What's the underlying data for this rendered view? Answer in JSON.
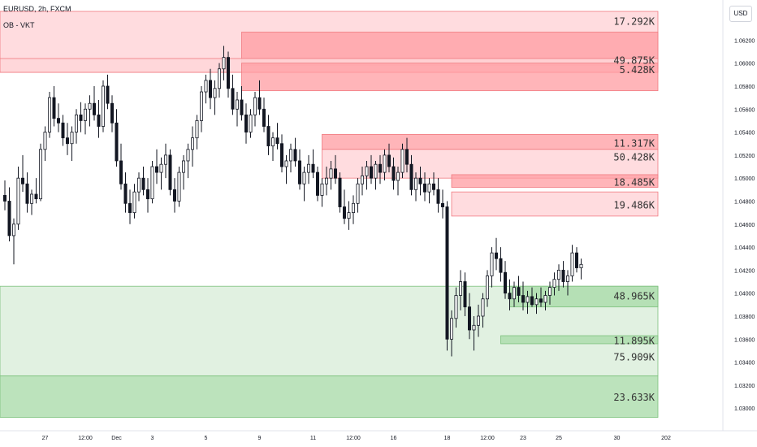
{
  "header": {
    "symbol_line": "EURUSD, 2h, FXCM",
    "indicator": "OB - VKT",
    "currency_button": "USD"
  },
  "colors": {
    "bear_light": "#ffd6d9",
    "bear_dark": "#ff9ca1",
    "bear_border": "#f07a80",
    "bull_light": "#dcefdc",
    "bull_dark": "#a5d9a5",
    "bull_border": "#7cc07c",
    "candle": "#131722"
  },
  "chart_data": {
    "type": "candlestick",
    "y_axis": {
      "min": 1.0286,
      "max": 1.0645,
      "ticks": [
        "1.06200",
        "1.06000",
        "1.05800",
        "1.05600",
        "1.05400",
        "1.05200",
        "1.05000",
        "1.04800",
        "1.04600",
        "1.04400",
        "1.04200",
        "1.04000",
        "1.03800",
        "1.03600",
        "1.03400",
        "1.03200",
        "1.03000"
      ]
    },
    "x_axis": {
      "ticks": [
        {
          "label": "27",
          "i": 9
        },
        {
          "label": "12:00",
          "i": 18
        },
        {
          "label": "Dec",
          "i": 25
        },
        {
          "label": "3",
          "i": 33
        },
        {
          "label": "5",
          "i": 45
        },
        {
          "label": "9",
          "i": 57
        },
        {
          "label": "11",
          "i": 69
        },
        {
          "label": "12:00",
          "i": 78
        },
        {
          "label": "16",
          "i": 87
        },
        {
          "label": "18",
          "i": 99
        },
        {
          "label": "12:00",
          "i": 108
        },
        {
          "label": "23",
          "i": 116
        },
        {
          "label": "25",
          "i": 124
        },
        {
          "label": "30",
          "i": 137
        },
        {
          "label": "202",
          "i": 148
        }
      ]
    },
    "candles_ohlc": [
      [
        1.0485,
        1.0498,
        1.0472,
        1.048
      ],
      [
        1.048,
        1.0492,
        1.0445,
        1.045
      ],
      [
        1.045,
        1.0465,
        1.0425,
        1.046
      ],
      [
        1.046,
        1.051,
        1.0455,
        1.05
      ],
      [
        1.05,
        1.052,
        1.0488,
        1.0495
      ],
      [
        1.0495,
        1.0505,
        1.047,
        1.0478
      ],
      [
        1.0478,
        1.049,
        1.0468,
        1.0486
      ],
      [
        1.0486,
        1.05,
        1.0478,
        1.0482
      ],
      [
        1.0482,
        1.053,
        1.048,
        1.0525
      ],
      [
        1.0525,
        1.0545,
        1.0515,
        1.054
      ],
      [
        1.054,
        1.0575,
        1.0535,
        1.057
      ],
      [
        1.057,
        1.058,
        1.0545,
        1.0552
      ],
      [
        1.0552,
        1.0565,
        1.054,
        1.0548
      ],
      [
        1.0548,
        1.0555,
        1.0528,
        1.0535
      ],
      [
        1.0535,
        1.0548,
        1.052,
        1.053
      ],
      [
        1.053,
        1.0545,
        1.0515,
        1.054
      ],
      [
        1.054,
        1.056,
        1.053,
        1.0555
      ],
      [
        1.0555,
        1.0566,
        1.054,
        1.055
      ],
      [
        1.055,
        1.0565,
        1.0538,
        1.056
      ],
      [
        1.056,
        1.0572,
        1.0545,
        1.0565
      ],
      [
        1.0565,
        1.058,
        1.055,
        1.0555
      ],
      [
        1.0555,
        1.0568,
        1.0535,
        1.0545
      ],
      [
        1.0545,
        1.0585,
        1.054,
        1.058
      ],
      [
        1.058,
        1.059,
        1.056,
        1.0565
      ],
      [
        1.0565,
        1.0572,
        1.054,
        1.0548
      ],
      [
        1.0548,
        1.056,
        1.051,
        1.0515
      ],
      [
        1.0515,
        1.053,
        1.049,
        1.0495
      ],
      [
        1.0495,
        1.0505,
        1.047,
        1.0478
      ],
      [
        1.0478,
        1.049,
        1.046,
        1.047
      ],
      [
        1.047,
        1.0495,
        1.0465,
        1.0488
      ],
      [
        1.0488,
        1.0505,
        1.048,
        1.05
      ],
      [
        1.05,
        1.051,
        1.0485,
        1.049
      ],
      [
        1.049,
        1.05,
        1.047,
        1.0482
      ],
      [
        1.0482,
        1.0515,
        1.0478,
        1.051
      ],
      [
        1.051,
        1.0525,
        1.0495,
        1.0505
      ],
      [
        1.0505,
        1.0518,
        1.049,
        1.0512
      ],
      [
        1.0512,
        1.053,
        1.05,
        1.052
      ],
      [
        1.052,
        1.0525,
        1.0485,
        1.049
      ],
      [
        1.049,
        1.05,
        1.047,
        1.048
      ],
      [
        1.048,
        1.051,
        1.0475,
        1.0505
      ],
      [
        1.0505,
        1.052,
        1.049,
        1.0515
      ],
      [
        1.0515,
        1.053,
        1.05,
        1.0525
      ],
      [
        1.0525,
        1.0545,
        1.051,
        1.0535
      ],
      [
        1.0535,
        1.0555,
        1.0525,
        1.055
      ],
      [
        1.055,
        1.058,
        1.054,
        1.0575
      ],
      [
        1.0575,
        1.059,
        1.0565,
        1.0585
      ],
      [
        1.0585,
        1.0595,
        1.056,
        1.057
      ],
      [
        1.057,
        1.0585,
        1.0555,
        1.0578
      ],
      [
        1.0578,
        1.06,
        1.057,
        1.0595
      ],
      [
        1.0595,
        1.0615,
        1.0585,
        1.0605
      ],
      [
        1.0605,
        1.061,
        1.057,
        1.0578
      ],
      [
        1.0578,
        1.059,
        1.0555,
        1.056
      ],
      [
        1.056,
        1.0575,
        1.0545,
        1.0568
      ],
      [
        1.0568,
        1.058,
        1.055,
        1.0555
      ],
      [
        1.0555,
        1.0565,
        1.053,
        1.054
      ],
      [
        1.054,
        1.056,
        1.0535,
        1.0555
      ],
      [
        1.0555,
        1.0575,
        1.0545,
        1.057
      ],
      [
        1.057,
        1.0585,
        1.0555,
        1.056
      ],
      [
        1.056,
        1.057,
        1.054,
        1.0545
      ],
      [
        1.0545,
        1.0555,
        1.052,
        1.0528
      ],
      [
        1.0528,
        1.054,
        1.0515,
        1.0535
      ],
      [
        1.0535,
        1.0548,
        1.0525,
        1.053
      ],
      [
        1.053,
        1.0538,
        1.0505,
        1.051
      ],
      [
        1.051,
        1.052,
        1.0495,
        1.0515
      ],
      [
        1.0515,
        1.053,
        1.0505,
        1.0525
      ],
      [
        1.0525,
        1.0535,
        1.051,
        1.0515
      ],
      [
        1.0515,
        1.0525,
        1.049,
        1.0495
      ],
      [
        1.0495,
        1.051,
        1.048,
        1.0505
      ],
      [
        1.0505,
        1.052,
        1.0495,
        1.0512
      ],
      [
        1.0512,
        1.0525,
        1.05,
        1.0505
      ],
      [
        1.0505,
        1.051,
        1.048,
        1.0485
      ],
      [
        1.0485,
        1.05,
        1.0475,
        1.0495
      ],
      [
        1.0495,
        1.051,
        1.0485,
        1.05
      ],
      [
        1.05,
        1.0515,
        1.049,
        1.0508
      ],
      [
        1.0508,
        1.052,
        1.0495,
        1.05
      ],
      [
        1.05,
        1.0505,
        1.047,
        1.0475
      ],
      [
        1.0475,
        1.049,
        1.046,
        1.0465
      ],
      [
        1.0465,
        1.048,
        1.0455,
        1.047
      ],
      [
        1.047,
        1.0485,
        1.046,
        1.0478
      ],
      [
        1.0478,
        1.05,
        1.047,
        1.0495
      ],
      [
        1.0495,
        1.051,
        1.0485,
        1.0502
      ],
      [
        1.0502,
        1.0515,
        1.049,
        1.051
      ],
      [
        1.051,
        1.052,
        1.0495,
        1.05
      ],
      [
        1.05,
        1.0515,
        1.049,
        1.0512
      ],
      [
        1.0512,
        1.052,
        1.0495,
        1.0505
      ],
      [
        1.0505,
        1.0525,
        1.0498,
        1.052
      ],
      [
        1.052,
        1.053,
        1.0505,
        1.051
      ],
      [
        1.051,
        1.0518,
        1.049,
        1.0498
      ],
      [
        1.0498,
        1.051,
        1.0485,
        1.0505
      ],
      [
        1.0505,
        1.053,
        1.05,
        1.0525
      ],
      [
        1.0525,
        1.0535,
        1.0505,
        1.0512
      ],
      [
        1.0512,
        1.052,
        1.0485,
        1.049
      ],
      [
        1.049,
        1.0505,
        1.048,
        1.05
      ],
      [
        1.05,
        1.051,
        1.0485,
        1.0495
      ],
      [
        1.0495,
        1.0505,
        1.048,
        1.0488
      ],
      [
        1.0488,
        1.05,
        1.0478,
        1.0495
      ],
      [
        1.0495,
        1.0505,
        1.0485,
        1.049
      ],
      [
        1.049,
        1.05,
        1.047,
        1.0478
      ],
      [
        1.0478,
        1.049,
        1.0465,
        1.0475
      ],
      [
        1.0475,
        1.048,
        1.035,
        1.036
      ],
      [
        1.036,
        1.0385,
        1.0345,
        1.0378
      ],
      [
        1.0378,
        1.0405,
        1.037,
        1.0398
      ],
      [
        1.0398,
        1.042,
        1.0385,
        1.041
      ],
      [
        1.041,
        1.0418,
        1.038,
        1.0388
      ],
      [
        1.0388,
        1.04,
        1.036,
        1.0368
      ],
      [
        1.0368,
        1.038,
        1.035,
        1.0372
      ],
      [
        1.0372,
        1.039,
        1.0362,
        1.038
      ],
      [
        1.038,
        1.04,
        1.037,
        1.0395
      ],
      [
        1.0395,
        1.042,
        1.0388,
        1.0415
      ],
      [
        1.0415,
        1.044,
        1.0405,
        1.0435
      ],
      [
        1.0435,
        1.0448,
        1.042,
        1.043
      ],
      [
        1.043,
        1.044,
        1.041,
        1.0418
      ],
      [
        1.0418,
        1.0428,
        1.0395,
        1.04
      ],
      [
        1.04,
        1.0412,
        1.0385,
        1.0395
      ],
      [
        1.0395,
        1.041,
        1.0388,
        1.0405
      ],
      [
        1.0405,
        1.0415,
        1.0392,
        1.0398
      ],
      [
        1.0398,
        1.041,
        1.0385,
        1.0392
      ],
      [
        1.0392,
        1.0402,
        1.0382,
        1.0397
      ],
      [
        1.0397,
        1.0405,
        1.0388,
        1.039
      ],
      [
        1.039,
        1.04,
        1.0382,
        1.0395
      ],
      [
        1.0395,
        1.0405,
        1.0388,
        1.0392
      ],
      [
        1.0392,
        1.0402,
        1.0385,
        1.0398
      ],
      [
        1.0398,
        1.041,
        1.039,
        1.0405
      ],
      [
        1.0405,
        1.0418,
        1.0398,
        1.0412
      ],
      [
        1.0412,
        1.0425,
        1.0402,
        1.042
      ],
      [
        1.042,
        1.0428,
        1.0405,
        1.041
      ],
      [
        1.041,
        1.042,
        1.0398,
        1.0415
      ],
      [
        1.0415,
        1.0442,
        1.041,
        1.0435
      ],
      [
        1.0435,
        1.044,
        1.0418,
        1.0422
      ],
      [
        1.0422,
        1.043,
        1.0412,
        1.0425
      ]
    ],
    "order_blocks": [
      {
        "side": "bear",
        "top": 1.0645,
        "bottom": 1.0592,
        "label": "17.292K",
        "shade": "light",
        "x_start": 0
      },
      {
        "side": "bear",
        "top": 1.0627,
        "bottom": 1.0598,
        "label": "17.292K",
        "shade": "dark",
        "x_start": 53
      },
      {
        "side": "bear",
        "top": 1.0604,
        "bottom": 1.0592,
        "label": "49.875K",
        "shade": "light",
        "x_start": 0
      },
      {
        "side": "bear",
        "top": 1.06,
        "bottom": 1.0576,
        "label": "5.428K",
        "shade": "dark",
        "x_start": 53
      },
      {
        "side": "bear",
        "top": 1.0538,
        "bottom": 1.0525,
        "label": "11.317K",
        "shade": "dark",
        "x_start": 71
      },
      {
        "side": "bear",
        "top": 1.0525,
        "bottom": 1.05,
        "label": "50.428K",
        "shade": "light",
        "x_start": 71
      },
      {
        "side": "bear",
        "top": 1.0503,
        "bottom": 1.0492,
        "label": "18.485K",
        "shade": "dark",
        "x_start": 100
      },
      {
        "side": "bear",
        "top": 1.0488,
        "bottom": 1.0467,
        "label": "19.486K",
        "shade": "light",
        "x_start": 100
      },
      {
        "side": "bull",
        "top": 1.0406,
        "bottom": 1.0328,
        "label": "48.965K",
        "shade": "light",
        "x_start": 0
      },
      {
        "side": "bull",
        "top": 1.0406,
        "bottom": 1.0388,
        "label": "48.965K",
        "shade": "dark",
        "x_start": 113
      },
      {
        "side": "bull",
        "top": 1.0363,
        "bottom": 1.0356,
        "label": "11.895K",
        "shade": "dark",
        "x_start": 111
      },
      {
        "side": "bull",
        "top": 1.0328,
        "bottom": 1.0328,
        "label": "75.909K",
        "shade": "none",
        "x_start": 0
      },
      {
        "side": "bull",
        "top": 1.0328,
        "bottom": 1.0292,
        "label": "23.633K",
        "shade": "dark",
        "x_start": 0
      }
    ]
  }
}
